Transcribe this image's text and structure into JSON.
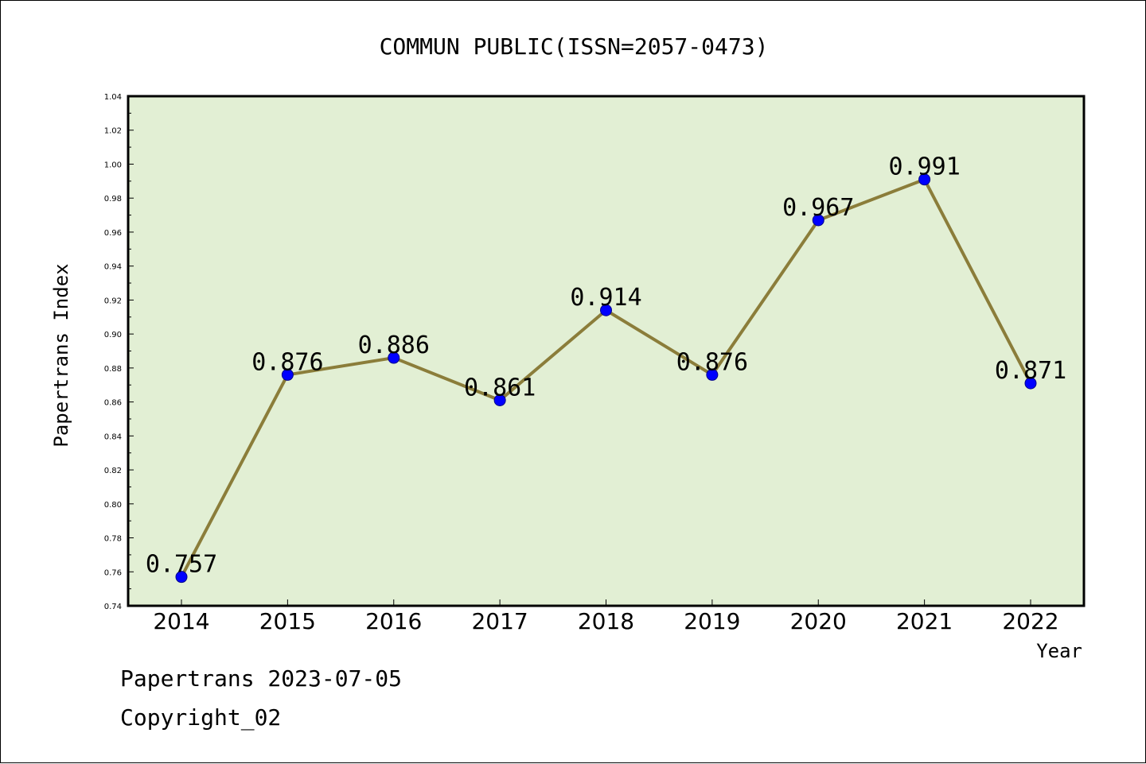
{
  "chart_data": {
    "type": "line",
    "title": "COMMUN PUBLIC(ISSN=2057-0473)",
    "xlabel": "Year",
    "ylabel": "Papertrans Index",
    "categories": [
      "2014",
      "2015",
      "2016",
      "2017",
      "2018",
      "2019",
      "2020",
      "2021",
      "2022"
    ],
    "series": [
      {
        "values": [
          0.757,
          0.876,
          0.886,
          0.861,
          0.914,
          0.876,
          0.967,
          0.991,
          0.871
        ],
        "labels": [
          "0.757",
          "0.876",
          "0.886",
          "0.861",
          "0.914",
          "0.876",
          "0.967",
          "0.991",
          "0.871"
        ]
      }
    ],
    "ylim": [
      0.74,
      1.04
    ],
    "yticks": [
      "0.74",
      "0.76",
      "0.78",
      "0.80",
      "0.82",
      "0.84",
      "0.86",
      "0.88",
      "0.90",
      "0.92",
      "0.94",
      "0.96",
      "0.98",
      "1.00",
      "1.02",
      "1.04"
    ],
    "grid": false,
    "colors": {
      "plot_background": "#e2efd4",
      "line": "#8b7d3a",
      "marker": "#0000ff"
    }
  },
  "footer": {
    "line1": "Papertrans 2023-07-05",
    "line2": "Copyright_02"
  }
}
